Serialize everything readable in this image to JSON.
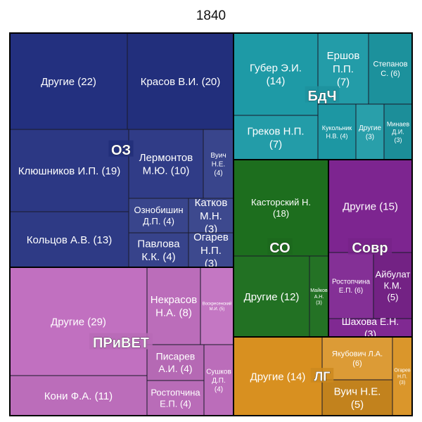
{
  "chart_data": {
    "type": "treemap",
    "title": "1840",
    "groups": [
      {
        "name": "ОЗ",
        "color": "#23307f",
        "items": [
          {
            "label": "Другие (22)",
            "value": 22
          },
          {
            "label": "Красов В.И. (20)",
            "value": 20
          },
          {
            "label": "Клюшников И.П. (19)",
            "value": 19
          },
          {
            "label": "Лермонтов М.Ю. (10)",
            "value": 10
          },
          {
            "label": "Вуич Н.Е. (4)",
            "value": 4
          },
          {
            "label": "Кольцов А.В. (13)",
            "value": 13
          },
          {
            "label": "Ознобишин Д.П. (4)",
            "value": 4
          },
          {
            "label": "Катков М.Н. (3)",
            "value": 3
          },
          {
            "label": "Павлова К.К. (4)",
            "value": 4
          },
          {
            "label": "Огарев Н.П. (3)",
            "value": 3
          }
        ]
      },
      {
        "name": "БдЧ",
        "color": "#1e9aa6",
        "items": [
          {
            "label": "Губер Э.И. (14)",
            "value": 14
          },
          {
            "label": "Ершов П.П. (7)",
            "value": 7
          },
          {
            "label": "Степанов С. (6)",
            "value": 6
          },
          {
            "label": "Греков Н.П. (7)",
            "value": 7
          },
          {
            "label": "Кукольник Н.В. (4)",
            "value": 4
          },
          {
            "label": "Другие (3)",
            "value": 3
          },
          {
            "label": "Минаев Д.И. (3)",
            "value": 3
          }
        ]
      },
      {
        "name": "СО",
        "color": "#1d6e1e",
        "items": [
          {
            "label": "Касторский Н. (18)",
            "value": 18
          },
          {
            "label": "Другие (12)",
            "value": 12
          },
          {
            "label": "Майков А.Н. (3)",
            "value": 3
          }
        ]
      },
      {
        "name": "Совр",
        "color": "#7d2590",
        "items": [
          {
            "label": "Другие (15)",
            "value": 15
          },
          {
            "label": "Ростопчина Е.П. (6)",
            "value": 6
          },
          {
            "label": "Айбулат К.М. (5)",
            "value": 5
          },
          {
            "label": "Шахова Е.Н. (3)",
            "value": 3
          }
        ]
      },
      {
        "name": "ПРиВЕТ",
        "color": "#c170c0",
        "items": [
          {
            "label": "Другие (29)",
            "value": 29
          },
          {
            "label": "Некрасов Н.А. (8)",
            "value": 8
          },
          {
            "label": "Воскресенский М.И. (5)",
            "value": 5
          },
          {
            "label": "Кони Ф.А. (11)",
            "value": 11
          },
          {
            "label": "Писарев А.И. (4)",
            "value": 4
          },
          {
            "label": "Сушков Д.П. (4)",
            "value": 4
          },
          {
            "label": "Ростопчина Е.П. (4)",
            "value": 4
          }
        ]
      },
      {
        "name": "ЛГ",
        "color": "#d89020",
        "items": [
          {
            "label": "Другие (14)",
            "value": 14
          },
          {
            "label": "Якубович Л.А. (6)",
            "value": 6
          },
          {
            "label": "Вуич Н.Е. (5)",
            "value": 5
          },
          {
            "label": "Огарев Н.П. (3)",
            "value": 3
          }
        ]
      }
    ]
  }
}
